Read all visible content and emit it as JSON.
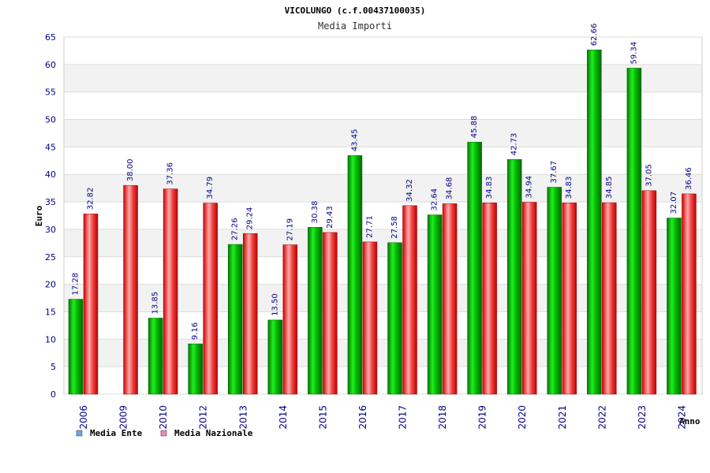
{
  "chart_data": {
    "type": "bar",
    "title": "VICOLUNGO (c.f.00437100035)",
    "subtitle": "Media Importi",
    "xlabel": "Anno",
    "ylabel": "Euro",
    "ylim": [
      0,
      65
    ],
    "yticks": [
      0,
      5,
      10,
      15,
      20,
      25,
      30,
      35,
      40,
      45,
      50,
      55,
      60,
      65
    ],
    "grid": true,
    "legend_position": "bottom-left",
    "categories": [
      "2006",
      "2009",
      "2010",
      "2012",
      "2013",
      "2014",
      "2015",
      "2016",
      "2017",
      "2018",
      "2019",
      "2020",
      "2021",
      "2022",
      "2023",
      "2024"
    ],
    "series": [
      {
        "name": "Media Ente",
        "color": "#00bb00",
        "legend_color": "#66aaee",
        "values": [
          17.28,
          null,
          13.85,
          9.16,
          27.26,
          13.5,
          30.38,
          43.45,
          27.58,
          32.64,
          45.88,
          42.73,
          37.67,
          62.66,
          59.34,
          32.07
        ],
        "labels": [
          "17.28",
          "",
          "13.85",
          "9.16",
          "27.26",
          "13.50",
          "30.38",
          "43.45",
          "27.58",
          "32.64",
          "45.88",
          "42.73",
          "37.67",
          "62.66",
          "59.34",
          "32.07"
        ]
      },
      {
        "name": "Media Nazionale",
        "color": "#ee2222",
        "legend_color": "#ee88bb",
        "values": [
          32.82,
          38.0,
          37.36,
          34.79,
          29.24,
          27.19,
          29.43,
          27.71,
          34.32,
          34.68,
          34.83,
          34.94,
          34.83,
          34.85,
          37.05,
          36.46
        ],
        "labels": [
          "32.82",
          "38.00",
          "37.36",
          "34.79",
          "29.24",
          "27.19",
          "29.43",
          "27.71",
          "34.32",
          "34.68",
          "34.83",
          "34.94",
          "34.83",
          "34.85",
          "37.05",
          "36.46"
        ]
      }
    ]
  }
}
